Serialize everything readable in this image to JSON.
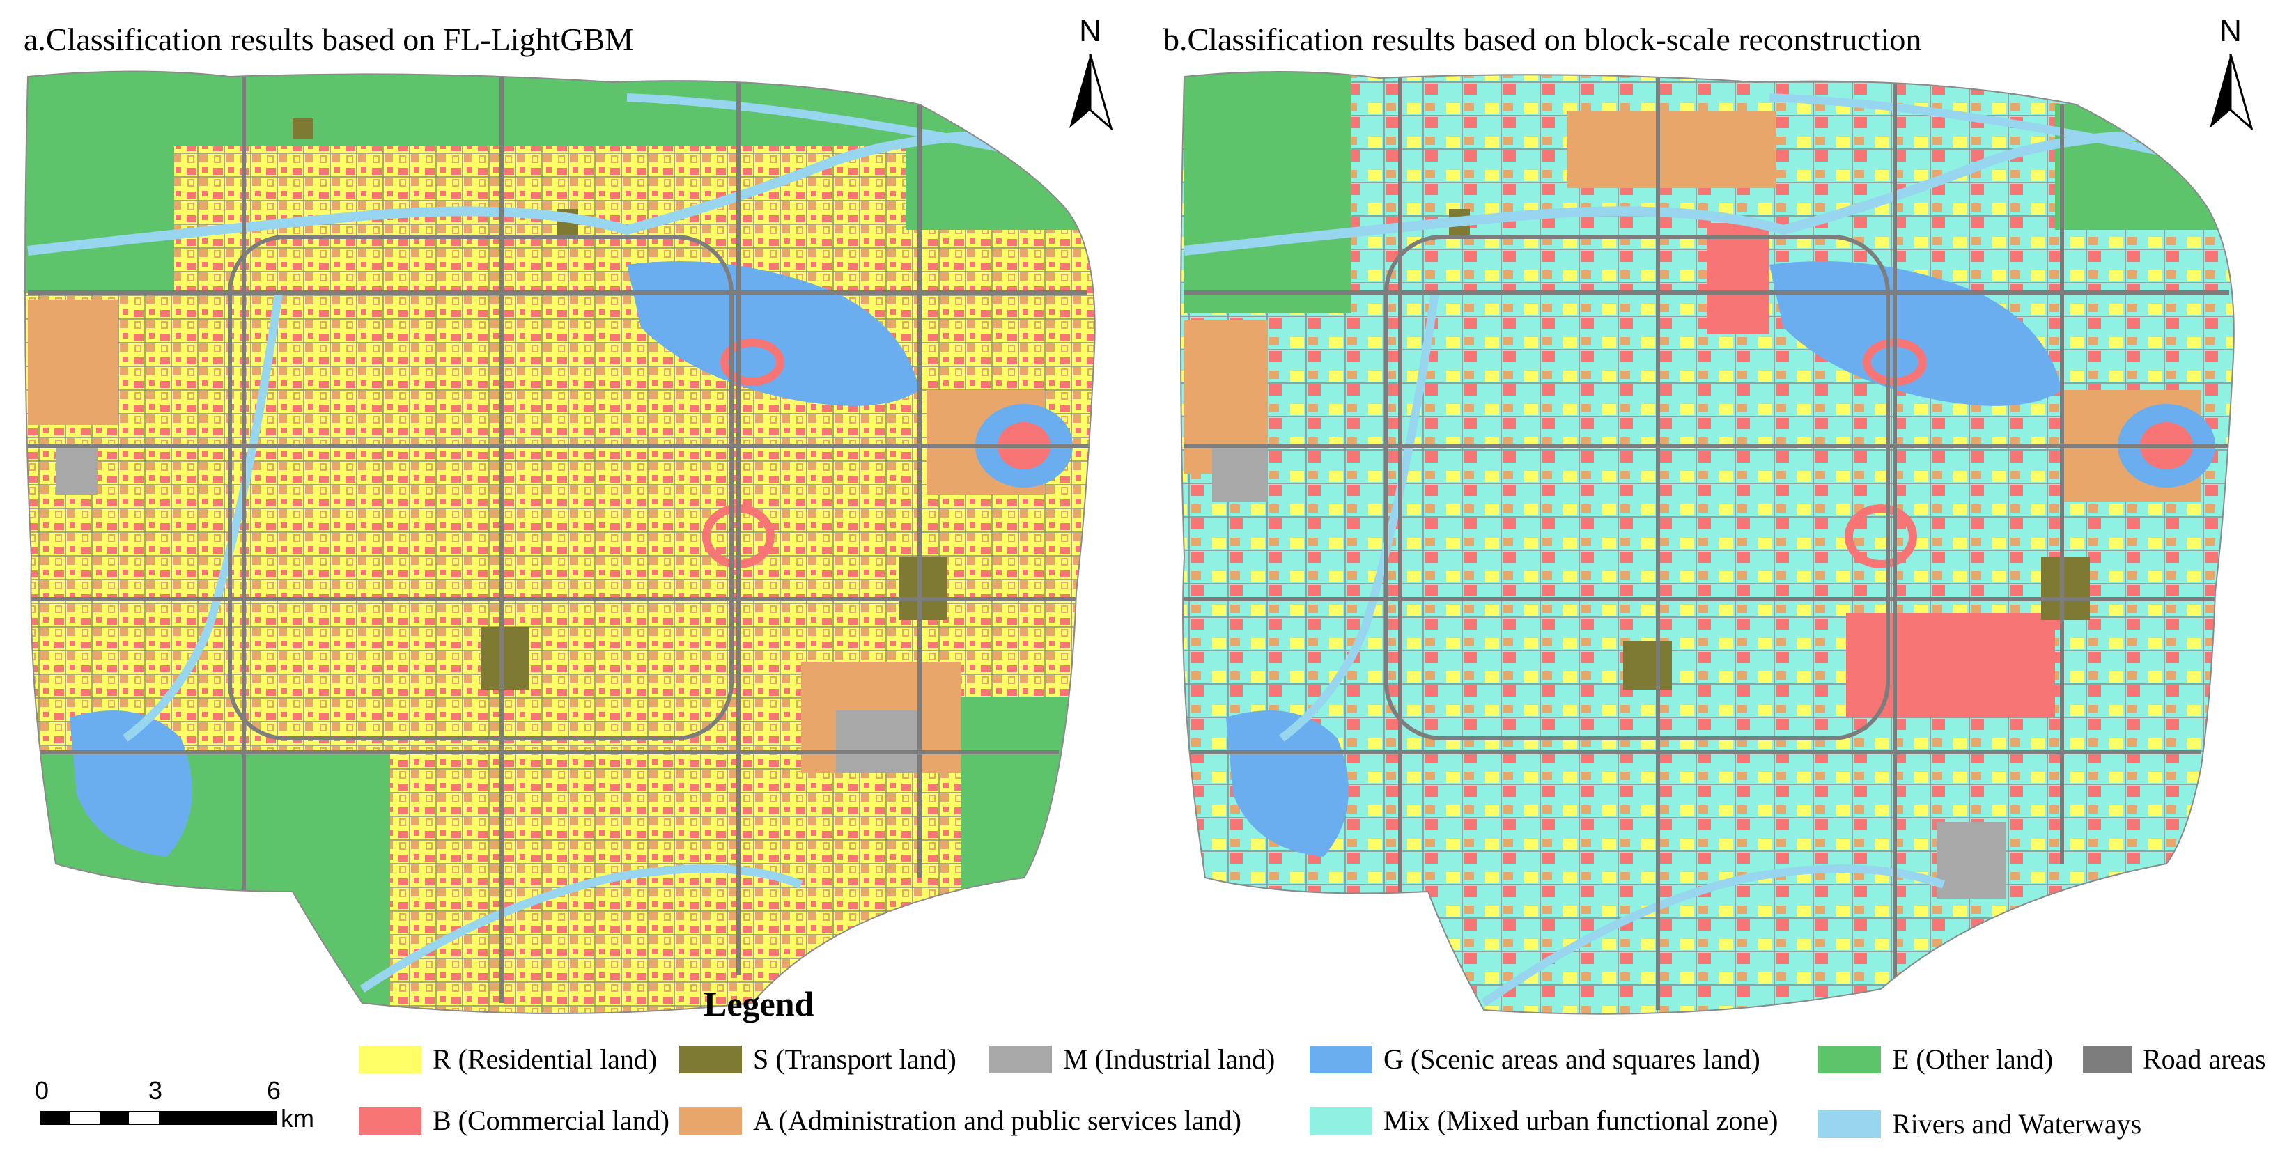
{
  "panels": [
    {
      "title": "a.Classification results based on FL-LightGBM"
    },
    {
      "title": "b.Classification results based on block-scale reconstruction"
    }
  ],
  "north_arrow": {
    "label": "N"
  },
  "legend": {
    "title": "Legend",
    "items": [
      {
        "label": "R (Residential land)",
        "color": "#ffff66"
      },
      {
        "label": "B (Commercial land)",
        "color": "#f77575"
      },
      {
        "label": "S (Transport land)",
        "color": "#7f7a33"
      },
      {
        "label": "A (Administration and public services land)",
        "color": "#e8a66a"
      },
      {
        "label": "M (Industrial land)",
        "color": "#a8a8a8"
      },
      {
        "label": "G (Scenic areas and squares land)",
        "color": "#6aaef0"
      },
      {
        "label": "Mix (Mixed urban functional zone)",
        "color": "#8ef1e2"
      },
      {
        "label": "E (Other land)",
        "color": "#5ec46c"
      },
      {
        "label": "Road areas",
        "color": "#7d7d7d"
      },
      {
        "label": "Rivers and Waterways",
        "color": "#98d6f0"
      }
    ]
  },
  "scale_bar": {
    "ticks": [
      "0",
      "3",
      "6"
    ],
    "unit": "km"
  }
}
